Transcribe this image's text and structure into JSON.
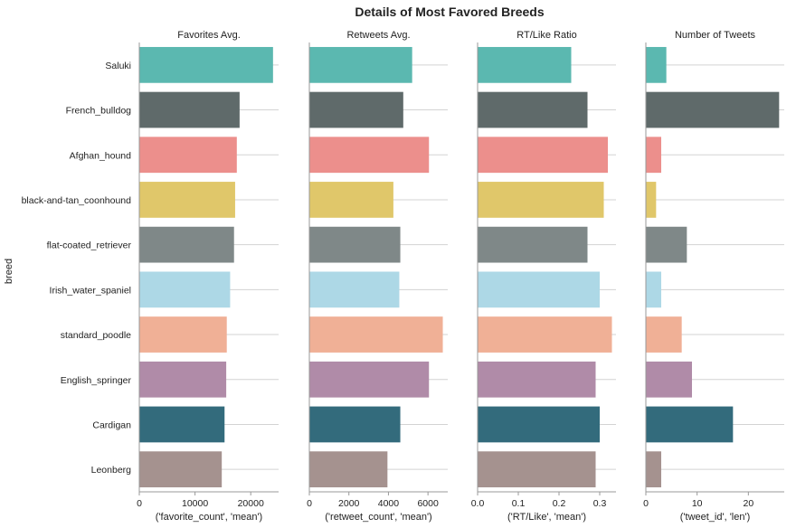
{
  "chart_data": {
    "type": "bar",
    "orientation": "horizontal",
    "title": "Details of Most Favored Breeds",
    "ylabel": "breed",
    "categories": [
      "Saluki",
      "French_bulldog",
      "Afghan_hound",
      "black-and-tan_coonhound",
      "flat-coated_retriever",
      "Irish_water_spaniel",
      "standard_poodle",
      "English_springer",
      "Cardigan",
      "Leonberg"
    ],
    "colors": [
      "#5bb8b0",
      "#5f6a6a",
      "#ec8f8c",
      "#e0c76a",
      "#7f8888",
      "#add8e6",
      "#f0b096",
      "#b08ba8",
      "#336b7c",
      "#a5928f"
    ],
    "grid": "horizontal lines at category centers",
    "panels": [
      {
        "title": "Favorites Avg.",
        "xlabel": "('favorite_count', 'mean')",
        "xlim": [
          0,
          25000
        ],
        "ticks": [
          0,
          10000,
          20000
        ],
        "tick_labels": [
          "0",
          "10000",
          "20000"
        ],
        "values": [
          24000,
          18000,
          17500,
          17200,
          17000,
          16300,
          15700,
          15600,
          15300,
          14800
        ]
      },
      {
        "title": "Retweets Avg.",
        "xlabel": "('retweet_count', 'mean')",
        "xlim": [
          0,
          7000
        ],
        "ticks": [
          0,
          2000,
          4000,
          6000
        ],
        "tick_labels": [
          "0",
          "2000",
          "4000",
          "6000"
        ],
        "values": [
          5200,
          4750,
          6050,
          4250,
          4600,
          4550,
          6750,
          6050,
          4600,
          3950
        ]
      },
      {
        "title": "RT/Like Ratio",
        "xlabel": "('RT/Like', 'mean')",
        "xlim": [
          0,
          0.34
        ],
        "ticks": [
          0,
          0.1,
          0.2,
          0.3
        ],
        "tick_labels": [
          "0.0",
          "0.1",
          "0.2",
          "0.3"
        ],
        "values": [
          0.23,
          0.27,
          0.32,
          0.31,
          0.27,
          0.3,
          0.33,
          0.29,
          0.3,
          0.29
        ]
      },
      {
        "title": "Number of Tweets",
        "xlabel": "('tweet_id', 'len')",
        "xlim": [
          0,
          27
        ],
        "ticks": [
          0,
          10,
          20
        ],
        "tick_labels": [
          "0",
          "10",
          "20"
        ],
        "values": [
          4,
          26,
          3,
          2,
          8,
          3,
          7,
          9,
          17,
          3
        ]
      }
    ]
  }
}
